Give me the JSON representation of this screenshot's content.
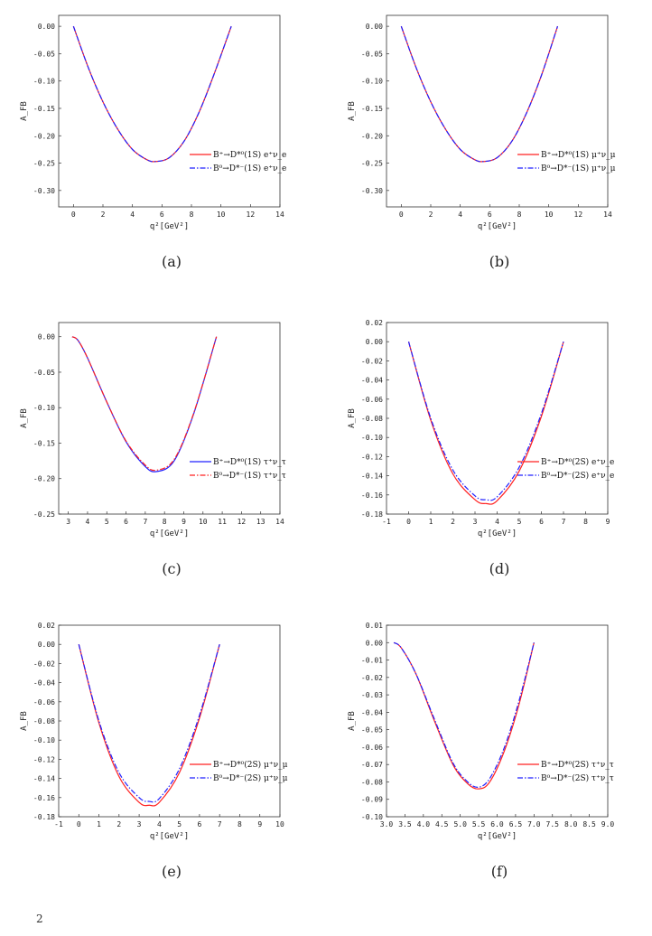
{
  "chart_data": [
    {
      "type": "line",
      "caption": "(a)",
      "xlabel": "q²[GeV²]",
      "ylabel": "A_FB",
      "xlim": [
        -1,
        14
      ],
      "ylim": [
        -0.33,
        0.02
      ],
      "xticks": [
        0,
        2,
        4,
        6,
        8,
        10,
        12,
        14
      ],
      "xtick_labels": [
        "0",
        "2",
        "4",
        "6",
        "8",
        "10",
        "12",
        "14"
      ],
      "yticks": [
        0.0,
        -0.05,
        -0.1,
        -0.15,
        -0.2,
        -0.25,
        -0.3
      ],
      "ytick_labels": [
        "0.00",
        "-0.05",
        "-0.10",
        "-0.15",
        "-0.20",
        "-0.25",
        "-0.30"
      ],
      "legend_position": "lower-right",
      "series": [
        {
          "name": "B⁺→D*⁰(1S) e⁺ν_e",
          "color": "#ff2020",
          "style": "solid",
          "x": [
            0,
            1,
            2,
            3,
            4,
            5,
            5.6,
            6.5,
            7.5,
            8.5,
            9.5,
            10.7
          ],
          "y": [
            0.0,
            -0.075,
            -0.138,
            -0.188,
            -0.225,
            -0.244,
            -0.247,
            -0.24,
            -0.21,
            -0.158,
            -0.09,
            0.0
          ]
        },
        {
          "name": "B⁰→D*⁻(1S) e⁺ν_e",
          "color": "#2020ff",
          "style": "dashdot",
          "x": [
            0,
            1,
            2,
            3,
            4,
            5,
            5.6,
            6.5,
            7.5,
            8.5,
            9.5,
            10.7
          ],
          "y": [
            0.0,
            -0.075,
            -0.138,
            -0.188,
            -0.225,
            -0.244,
            -0.247,
            -0.24,
            -0.21,
            -0.158,
            -0.09,
            0.0
          ]
        }
      ]
    },
    {
      "type": "line",
      "caption": "(b)",
      "xlabel": "q²[GeV²]",
      "ylabel": "A_FB",
      "xlim": [
        -1,
        14
      ],
      "ylim": [
        -0.33,
        0.02
      ],
      "xticks": [
        0,
        2,
        4,
        6,
        8,
        10,
        12,
        14
      ],
      "xtick_labels": [
        "0",
        "2",
        "4",
        "6",
        "8",
        "10",
        "12",
        "14"
      ],
      "yticks": [
        0.0,
        -0.05,
        -0.1,
        -0.15,
        -0.2,
        -0.25,
        -0.3
      ],
      "ytick_labels": [
        "0.00",
        "-0.05",
        "-0.10",
        "-0.15",
        "-0.20",
        "-0.25",
        "-0.30"
      ],
      "legend_position": "lower-right",
      "series": [
        {
          "name": "B⁺→D*⁰(1S) μ⁺ν_μ",
          "color": "#ff2020",
          "style": "solid",
          "x": [
            0,
            1,
            2,
            3,
            4,
            5,
            5.6,
            6.5,
            7.5,
            8.5,
            9.5,
            10.6
          ],
          "y": [
            0.0,
            -0.075,
            -0.138,
            -0.188,
            -0.225,
            -0.244,
            -0.247,
            -0.24,
            -0.21,
            -0.158,
            -0.09,
            0.0
          ]
        },
        {
          "name": "B⁰→D*⁻(1S) μ⁺ν_μ",
          "color": "#2020ff",
          "style": "dashdot",
          "x": [
            0,
            1,
            2,
            3,
            4,
            5,
            5.6,
            6.5,
            7.5,
            8.5,
            9.5,
            10.6
          ],
          "y": [
            0.0,
            -0.075,
            -0.138,
            -0.188,
            -0.225,
            -0.244,
            -0.247,
            -0.24,
            -0.21,
            -0.158,
            -0.09,
            0.0
          ]
        }
      ]
    },
    {
      "type": "line",
      "caption": "(c)",
      "xlabel": "q²[GeV²]",
      "ylabel": "A_FB",
      "xlim": [
        2.5,
        14
      ],
      "ylim": [
        -0.25,
        0.02
      ],
      "xticks": [
        3,
        4,
        5,
        6,
        7,
        8,
        9,
        10,
        11,
        12,
        13,
        14
      ],
      "xtick_labels": [
        "3",
        "4",
        "5",
        "6",
        "7",
        "8",
        "9",
        "10",
        "11",
        "12",
        "13",
        "14"
      ],
      "yticks": [
        0.0,
        -0.05,
        -0.1,
        -0.15,
        -0.2,
        -0.25
      ],
      "ytick_labels": [
        "0.00",
        "-0.05",
        "-0.10",
        "-0.15",
        "-0.20",
        "-0.25"
      ],
      "legend_position": "lower-right",
      "series": [
        {
          "name": "B⁺→D*⁰(1S) τ⁺ν_τ",
          "color": "#2020ff",
          "style": "solid",
          "x": [
            3.2,
            3.5,
            4,
            5,
            6,
            7,
            7.6,
            8.5,
            9.5,
            10.7
          ],
          "y": [
            0.0,
            -0.005,
            -0.03,
            -0.092,
            -0.148,
            -0.183,
            -0.19,
            -0.175,
            -0.11,
            0.0
          ]
        },
        {
          "name": "B⁰→D*⁻(1S) τ⁺ν_τ",
          "color": "#ff2020",
          "style": "dashdot",
          "x": [
            3.2,
            3.5,
            4,
            5,
            6,
            7,
            7.6,
            8.5,
            9.5,
            10.7
          ],
          "y": [
            0.0,
            -0.005,
            -0.03,
            -0.092,
            -0.147,
            -0.181,
            -0.188,
            -0.173,
            -0.109,
            0.0
          ]
        }
      ]
    },
    {
      "type": "line",
      "caption": "(d)",
      "xlabel": "q²[GeV²]",
      "ylabel": "A_FB",
      "xlim": [
        -1,
        9
      ],
      "ylim": [
        -0.18,
        0.02
      ],
      "xticks": [
        -1,
        0,
        1,
        2,
        3,
        4,
        5,
        6,
        7,
        8,
        9
      ],
      "xtick_labels": [
        "-1",
        "0",
        "1",
        "2",
        "3",
        "4",
        "5",
        "6",
        "7",
        "8",
        "9"
      ],
      "yticks": [
        0.02,
        0.0,
        -0.02,
        -0.04,
        -0.06,
        -0.08,
        -0.1,
        -0.12,
        -0.14,
        -0.16,
        -0.18
      ],
      "ytick_labels": [
        "0.02",
        "0.00",
        "-0.02",
        "-0.04",
        "-0.06",
        "-0.08",
        "-0.10",
        "-0.12",
        "-0.14",
        "-0.16",
        "-0.18"
      ],
      "legend_position": "lower-right",
      "series": [
        {
          "name": "B⁺→D*⁰(2S) e⁺ν_e",
          "color": "#ff2020",
          "style": "solid",
          "x": [
            0,
            1,
            2,
            3,
            3.5,
            4,
            5,
            6,
            7
          ],
          "y": [
            0.0,
            -0.082,
            -0.138,
            -0.165,
            -0.169,
            -0.166,
            -0.135,
            -0.078,
            0.0
          ]
        },
        {
          "name": "B⁰→D*⁻(2S) e⁺ν_e",
          "color": "#2020ff",
          "style": "dashdot",
          "x": [
            0,
            1,
            2,
            3,
            3.5,
            4,
            5,
            6,
            7
          ],
          "y": [
            0.0,
            -0.08,
            -0.134,
            -0.161,
            -0.165,
            -0.162,
            -0.131,
            -0.075,
            0.0
          ]
        }
      ]
    },
    {
      "type": "line",
      "caption": "(e)",
      "xlabel": "q²[GeV²]",
      "ylabel": "A_FB",
      "xlim": [
        -1,
        10
      ],
      "ylim": [
        -0.18,
        0.02
      ],
      "xticks": [
        -1,
        0,
        1,
        2,
        3,
        4,
        5,
        6,
        7,
        8,
        9,
        10
      ],
      "xtick_labels": [
        "-1",
        "0",
        "1",
        "2",
        "3",
        "4",
        "5",
        "6",
        "7",
        "8",
        "9",
        "10"
      ],
      "yticks": [
        0.02,
        0.0,
        -0.02,
        -0.04,
        -0.06,
        -0.08,
        -0.1,
        -0.12,
        -0.14,
        -0.16,
        -0.18
      ],
      "ytick_labels": [
        "0.02",
        "0.00",
        "-0.02",
        "-0.04",
        "-0.06",
        "-0.08",
        "-0.10",
        "-0.12",
        "-0.14",
        "-0.16",
        "-0.18"
      ],
      "legend_position": "lower-right",
      "series": [
        {
          "name": "B⁺→D*⁰(2S) μ⁺ν_μ",
          "color": "#ff2020",
          "style": "solid",
          "x": [
            0,
            1,
            2,
            3,
            3.5,
            4,
            5,
            6,
            7
          ],
          "y": [
            0.0,
            -0.082,
            -0.138,
            -0.165,
            -0.168,
            -0.165,
            -0.134,
            -0.077,
            0.0
          ]
        },
        {
          "name": "B⁰→D*⁻(2S) μ⁺ν_μ",
          "color": "#2020ff",
          "style": "dashdot",
          "x": [
            0,
            1,
            2,
            3,
            3.5,
            4,
            5,
            6,
            7
          ],
          "y": [
            0.0,
            -0.08,
            -0.134,
            -0.16,
            -0.164,
            -0.161,
            -0.13,
            -0.074,
            0.0
          ]
        }
      ]
    },
    {
      "type": "line",
      "caption": "(f)",
      "xlabel": "q²[GeV²]",
      "ylabel": "A_FB",
      "xlim": [
        3.0,
        9.0
      ],
      "ylim": [
        -0.1,
        0.01
      ],
      "xticks": [
        3.0,
        3.5,
        4.0,
        4.5,
        5.0,
        5.5,
        6.0,
        6.5,
        7.0,
        7.5,
        8.0,
        8.5,
        9.0
      ],
      "xtick_labels": [
        "3.0",
        "3.5",
        "4.0",
        "4.5",
        "5.0",
        "5.5",
        "6.0",
        "6.5",
        "7.0",
        "7.5",
        "8.0",
        "8.5",
        "9.0"
      ],
      "yticks": [
        0.01,
        0.0,
        -0.01,
        -0.02,
        -0.03,
        -0.04,
        -0.05,
        -0.06,
        -0.07,
        -0.08,
        -0.09,
        -0.1
      ],
      "ytick_labels": [
        "0.01",
        "0.00",
        "-0.01",
        "-0.02",
        "-0.03",
        "-0.04",
        "-0.05",
        "-0.06",
        "-0.07",
        "-0.08",
        "-0.09",
        "-0.10"
      ],
      "legend_position": "lower-right",
      "series": [
        {
          "name": "B⁺→D*⁰(2S) τ⁺ν_τ",
          "color": "#ff2020",
          "style": "solid",
          "x": [
            3.2,
            3.4,
            3.8,
            4.3,
            4.8,
            5.2,
            5.5,
            5.8,
            6.2,
            6.6,
            7.0
          ],
          "y": [
            0.0,
            -0.003,
            -0.018,
            -0.045,
            -0.07,
            -0.081,
            -0.084,
            -0.08,
            -0.062,
            -0.035,
            0.0
          ]
        },
        {
          "name": "B⁰→D*⁻(2S) τ⁺ν_τ",
          "color": "#2020ff",
          "style": "dashdot",
          "x": [
            3.2,
            3.4,
            3.8,
            4.3,
            4.8,
            5.2,
            5.5,
            5.8,
            6.2,
            6.6,
            7.0
          ],
          "y": [
            0.0,
            -0.003,
            -0.018,
            -0.044,
            -0.069,
            -0.08,
            -0.083,
            -0.078,
            -0.06,
            -0.033,
            0.0
          ]
        }
      ]
    }
  ],
  "footer": {
    "text": "2"
  }
}
